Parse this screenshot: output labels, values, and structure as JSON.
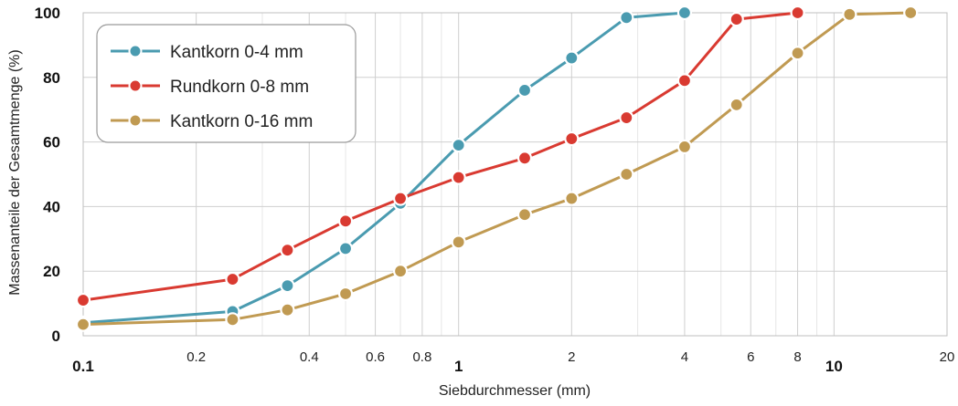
{
  "chart_data": {
    "type": "line",
    "xscale": "log",
    "xlabel": "Siebdurchmesser (mm)",
    "ylabel": "Massenanteile der Gesamtmenge (%)",
    "xlim": [
      0.1,
      20
    ],
    "ylim": [
      0,
      100
    ],
    "grid": true,
    "legend_position": "top-left",
    "x_ticks": [
      {
        "value": 0.1,
        "label": "0.1",
        "bold": true
      },
      {
        "value": 0.2,
        "label": "0.2",
        "bold": false
      },
      {
        "value": 0.4,
        "label": "0.4",
        "bold": false
      },
      {
        "value": 0.6,
        "label": "0.6",
        "bold": false
      },
      {
        "value": 0.8,
        "label": "0.8",
        "bold": false
      },
      {
        "value": 1,
        "label": "1",
        "bold": true
      },
      {
        "value": 2,
        "label": "2",
        "bold": false
      },
      {
        "value": 4,
        "label": "4",
        "bold": false
      },
      {
        "value": 6,
        "label": "6",
        "bold": false
      },
      {
        "value": 8,
        "label": "8",
        "bold": false
      },
      {
        "value": 10,
        "label": "10",
        "bold": true
      },
      {
        "value": 20,
        "label": "20",
        "bold": false
      }
    ],
    "y_ticks": [
      {
        "value": 0,
        "label": "0"
      },
      {
        "value": 20,
        "label": "20"
      },
      {
        "value": 40,
        "label": "40"
      },
      {
        "value": 60,
        "label": "60"
      },
      {
        "value": 80,
        "label": "80"
      },
      {
        "value": 100,
        "label": "100"
      }
    ],
    "series": [
      {
        "name": "Kantkorn 0-4 mm",
        "color": "#4a9bb0",
        "points": [
          {
            "x": 0.1,
            "y": 4
          },
          {
            "x": 0.25,
            "y": 7.5
          },
          {
            "x": 0.35,
            "y": 15.5
          },
          {
            "x": 0.5,
            "y": 27
          },
          {
            "x": 0.7,
            "y": 41
          },
          {
            "x": 1.0,
            "y": 59
          },
          {
            "x": 1.5,
            "y": 76
          },
          {
            "x": 2.0,
            "y": 86
          },
          {
            "x": 2.8,
            "y": 98.5
          },
          {
            "x": 4.0,
            "y": 100
          }
        ]
      },
      {
        "name": "Rundkorn 0-8 mm",
        "color": "#d93a31",
        "points": [
          {
            "x": 0.1,
            "y": 11
          },
          {
            "x": 0.25,
            "y": 17.5
          },
          {
            "x": 0.35,
            "y": 26.5
          },
          {
            "x": 0.5,
            "y": 35.5
          },
          {
            "x": 0.7,
            "y": 42.5
          },
          {
            "x": 1.0,
            "y": 49
          },
          {
            "x": 1.5,
            "y": 55
          },
          {
            "x": 2.0,
            "y": 61
          },
          {
            "x": 2.8,
            "y": 67.5
          },
          {
            "x": 4.0,
            "y": 79
          },
          {
            "x": 5.5,
            "y": 98
          },
          {
            "x": 8.0,
            "y": 100
          }
        ]
      },
      {
        "name": "Kantkorn 0-16 mm",
        "color": "#c09a52",
        "points": [
          {
            "x": 0.1,
            "y": 3.5
          },
          {
            "x": 0.25,
            "y": 5
          },
          {
            "x": 0.35,
            "y": 8
          },
          {
            "x": 0.5,
            "y": 13
          },
          {
            "x": 0.7,
            "y": 20
          },
          {
            "x": 1.0,
            "y": 29
          },
          {
            "x": 1.5,
            "y": 37.5
          },
          {
            "x": 2.0,
            "y": 42.5
          },
          {
            "x": 2.8,
            "y": 50
          },
          {
            "x": 4.0,
            "y": 58.5
          },
          {
            "x": 5.5,
            "y": 71.5
          },
          {
            "x": 8.0,
            "y": 87.5
          },
          {
            "x": 11.0,
            "y": 99.5
          },
          {
            "x": 16.0,
            "y": 100
          }
        ]
      }
    ]
  }
}
